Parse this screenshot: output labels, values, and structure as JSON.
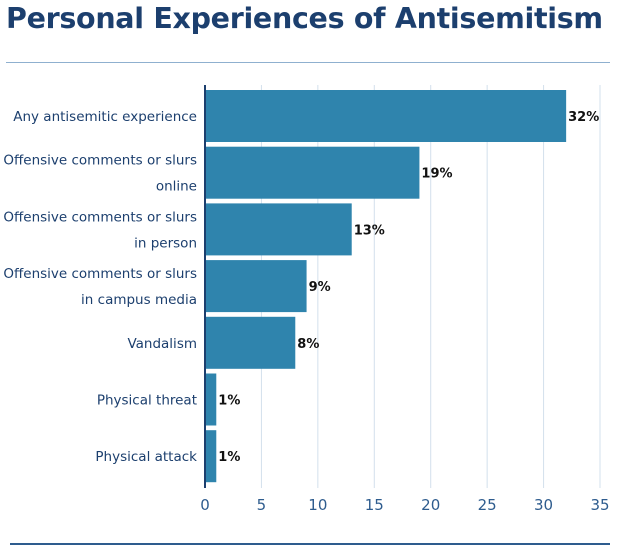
{
  "chart_data": {
    "type": "bar",
    "orientation": "horizontal",
    "title": "Personal Experiences of Antisemitism",
    "xlabel": "",
    "ylabel": "",
    "categories": [
      [
        "Any antisemitic experience"
      ],
      [
        "Offensive comments or slurs",
        "online"
      ],
      [
        "Offensive comments or slurs",
        "in person"
      ],
      [
        "Offensive comments or slurs",
        "in campus media"
      ],
      [
        "Vandalism"
      ],
      [
        "Physical threat"
      ],
      [
        "Physical attack"
      ]
    ],
    "values": [
      32,
      19,
      13,
      9,
      8,
      1,
      1
    ],
    "data_labels": [
      "32%",
      "19%",
      "13%",
      "9%",
      "8%",
      "1%",
      "1%"
    ],
    "xlim": [
      0,
      35
    ],
    "xticks": [
      0,
      5,
      10,
      15,
      20,
      25,
      30,
      35
    ],
    "grid": "vertical",
    "colors": {
      "bar": "#2f84ad",
      "grid": "#d3e0ec",
      "axis": "#1c3f6e",
      "category_text": "#1c3f6e",
      "tick_text": "#2e5c8e",
      "value_text": "#111111"
    }
  }
}
